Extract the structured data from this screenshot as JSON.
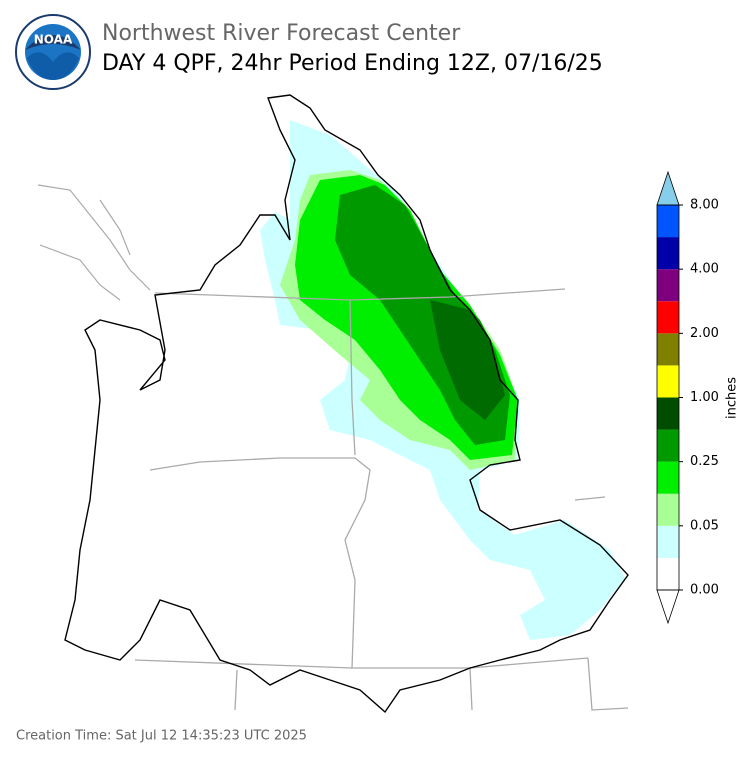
{
  "header": {
    "title": "Northwest River Forecast Center",
    "subtitle": "DAY 4 QPF, 24hr Period Ending 12Z, 07/16/25",
    "logo_text": "NOAA"
  },
  "colorbar": {
    "label": "inches",
    "colors": [
      "#ffffff",
      "#ccffff",
      "#a8ff96",
      "#00ee00",
      "#009900",
      "#004d00",
      "#ffff00",
      "#7f7f00",
      "#ff0000",
      "#7f007f",
      "#0000a8",
      "#0055ff"
    ],
    "over_color": "#87ceeb",
    "ticks": [
      {
        "value": 0,
        "label": "0.00"
      },
      {
        "value": 0.05,
        "label": "0.05"
      },
      {
        "value": 0.25,
        "label": "0.25"
      },
      {
        "value": 1,
        "label": "1.00"
      },
      {
        "value": 2,
        "label": "2.00"
      },
      {
        "value": 4,
        "label": "4.00"
      },
      {
        "value": 8,
        "label": "8.00"
      }
    ]
  },
  "footer": {
    "creation_time": "Creation Time: Sat Jul 12 14:35:23 UTC 2025"
  }
}
